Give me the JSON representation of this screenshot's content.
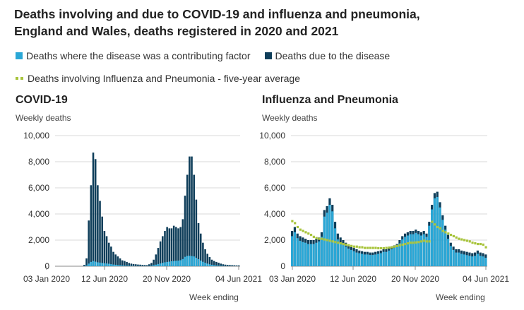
{
  "title": {
    "line1": "Deaths involving and due to COVID-19 and influenza and pneumonia,",
    "line2": "England and Wales, deaths registered in 2020 and 2021"
  },
  "legend": {
    "contributing": "Deaths where the disease was a contributing factor",
    "due": "Deaths due to the disease",
    "average": "Deaths involving Influenza and Pneumonia - five-year average"
  },
  "colors": {
    "contributing": "#2aa7d6",
    "due": "#0f3e5a",
    "average": "#a8c43c",
    "grid": "#d9d9d9"
  },
  "chart_data": [
    {
      "type": "bar",
      "title": "COVID-19",
      "ylabel": "Weekly deaths",
      "xlabel": "Week ending",
      "ylim": [
        0,
        10000
      ],
      "yticks": [
        "0",
        "2,000",
        "4,000",
        "6,000",
        "8,000",
        "10,000"
      ],
      "xticks": [
        "03 Jan 2020",
        "12 Jun 2020",
        "20 Nov 2020",
        "04 Jun 2021"
      ],
      "grid": true,
      "series": [
        {
          "name": "Deaths due to the disease",
          "values": [
            0,
            0,
            0,
            0,
            0,
            0,
            0,
            0,
            0,
            0,
            0,
            0,
            100,
            600,
            3500,
            6200,
            8700,
            8200,
            6200,
            5000,
            3800,
            2700,
            2300,
            1800,
            1500,
            1100,
            900,
            750,
            600,
            450,
            400,
            330,
            250,
            200,
            170,
            150,
            130,
            120,
            100,
            90,
            80,
            150,
            250,
            500,
            900,
            1400,
            1900,
            2300,
            2700,
            3000,
            2900,
            2900,
            3100,
            3000,
            2900,
            3000,
            3600,
            5400,
            7000,
            8400,
            8400,
            7000,
            5100,
            3300,
            2500,
            1800,
            1300,
            950,
            700,
            500,
            400,
            330,
            270,
            200,
            150,
            120,
            100,
            90,
            80,
            70,
            60,
            60
          ]
        },
        {
          "name": "Deaths where the disease was a contributing factor",
          "values": [
            0,
            0,
            0,
            0,
            0,
            0,
            0,
            0,
            0,
            0,
            0,
            0,
            10,
            60,
            200,
            330,
            400,
            350,
            300,
            280,
            250,
            230,
            210,
            190,
            160,
            130,
            110,
            90,
            80,
            60,
            50,
            45,
            40,
            30,
            25,
            20,
            20,
            18,
            15,
            12,
            10,
            20,
            40,
            80,
            120,
            170,
            210,
            260,
            300,
            330,
            350,
            380,
            400,
            420,
            430,
            460,
            550,
            720,
            790,
            800,
            780,
            750,
            650,
            540,
            430,
            340,
            270,
            200,
            150,
            110,
            80,
            60,
            45,
            35,
            25,
            20,
            15,
            12,
            10,
            8,
            7,
            6
          ]
        }
      ]
    },
    {
      "type": "bar",
      "title": "Influenza and Pneumonia",
      "ylabel": "Weekly deaths",
      "xlabel": "Week ending",
      "ylim": [
        0,
        10000
      ],
      "yticks": [
        "0",
        "2,000",
        "4,000",
        "6,000",
        "8,000",
        "10,000"
      ],
      "xticks": [
        "03 Jan 2020",
        "12 Jun 2020",
        "20 Nov 2020",
        "04 Jun 2021"
      ],
      "grid": true,
      "series": [
        {
          "name": "Deaths due to the disease",
          "values": [
            2700,
            3000,
            2500,
            2300,
            2200,
            2100,
            2000,
            2000,
            2000,
            2100,
            2200,
            2600,
            4300,
            4600,
            5200,
            4700,
            3400,
            2500,
            2200,
            2000,
            1800,
            1600,
            1500,
            1400,
            1300,
            1200,
            1150,
            1100,
            1100,
            1050,
            1050,
            1100,
            1150,
            1200,
            1300,
            1300,
            1400,
            1500,
            1600,
            1700,
            2000,
            2300,
            2500,
            2600,
            2700,
            2700,
            2800,
            2700,
            2600,
            2700,
            2500,
            3400,
            4700,
            5600,
            5700,
            4900,
            3900,
            3100,
            2400,
            1800,
            1500,
            1300,
            1300,
            1200,
            1150,
            1100,
            1050,
            1000,
            1050,
            1200,
            1050,
            1000,
            900
          ]
        },
        {
          "name": "Deaths where the disease was a contributing factor",
          "values": [
            2300,
            2600,
            2150,
            1950,
            1850,
            1800,
            1700,
            1700,
            1700,
            1800,
            1900,
            2250,
            3800,
            4100,
            4700,
            4200,
            2900,
            2050,
            1800,
            1650,
            1500,
            1350,
            1250,
            1150,
            1050,
            1000,
            950,
            900,
            900,
            860,
            860,
            900,
            950,
            1000,
            1100,
            1100,
            1200,
            1300,
            1400,
            1500,
            1750,
            2050,
            2250,
            2350,
            2450,
            2450,
            2550,
            2450,
            2350,
            2450,
            2250,
            3100,
            4350,
            5200,
            5300,
            4500,
            3550,
            2800,
            2100,
            1550,
            1250,
            1050,
            1050,
            950,
            900,
            850,
            800,
            750,
            800,
            950,
            800,
            750,
            650
          ]
        },
        {
          "name": "Deaths involving Influenza and Pneumonia - five-year average",
          "values": [
            3450,
            3300,
            3000,
            2800,
            2700,
            2600,
            2500,
            2400,
            2250,
            2150,
            2100,
            2100,
            2050,
            2000,
            1950,
            1900,
            1850,
            1800,
            1750,
            1700,
            1650,
            1600,
            1550,
            1500,
            1500,
            1450,
            1450,
            1400,
            1400,
            1400,
            1400,
            1400,
            1380,
            1380,
            1380,
            1400,
            1420,
            1450,
            1500,
            1550,
            1600,
            1650,
            1700,
            1750,
            1800,
            1800,
            1820,
            1850,
            1900,
            1950,
            1900,
            1900,
            3400,
            3200,
            3000,
            2900,
            2700,
            2600,
            2500,
            2400,
            2300,
            2200,
            2100,
            2050,
            2000,
            1950,
            1900,
            1800,
            1750,
            1700,
            1700,
            1650,
            1450
          ]
        }
      ]
    }
  ]
}
